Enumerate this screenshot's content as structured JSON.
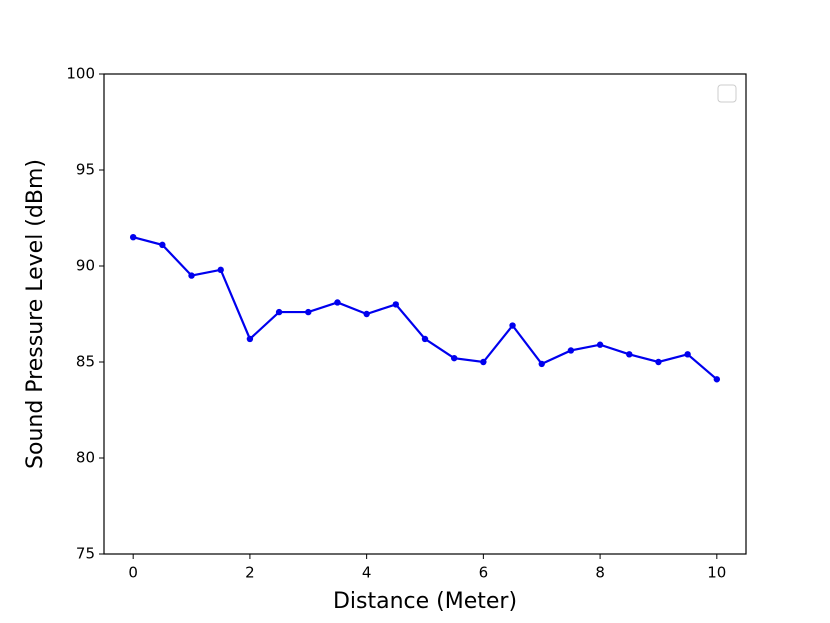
{
  "chart_data": {
    "type": "line",
    "x_label": "Distance (Meter)",
    "y_label": "Sound Pressure Level (dBm)",
    "x": [
      0,
      0.5,
      1,
      1.5,
      2,
      2.5,
      3,
      3.5,
      4,
      4.5,
      5,
      5.5,
      6,
      6.5,
      7,
      7.5,
      8,
      8.5,
      9,
      9.5,
      10
    ],
    "series": [
      {
        "color": "#0000ee",
        "values": [
          91.5,
          91.1,
          89.5,
          89.8,
          86.2,
          87.6,
          87.6,
          88.1,
          87.5,
          88.0,
          86.2,
          85.2,
          85.0,
          86.9,
          84.9,
          85.6,
          85.9,
          85.4,
          85.0,
          85.4,
          84.1
        ]
      }
    ],
    "xlim": [
      -0.5,
      10.5
    ],
    "xticks": [
      0,
      2,
      4,
      6,
      8,
      10
    ],
    "ylim": [
      75,
      100
    ],
    "yticks": [
      75,
      80,
      85,
      90,
      95,
      100
    ],
    "legend": "upper right"
  }
}
